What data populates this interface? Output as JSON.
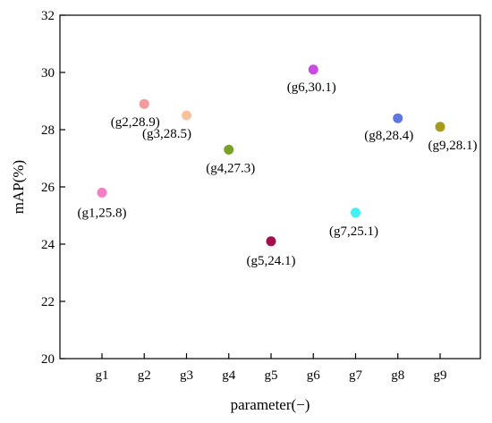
{
  "chart_data": {
    "type": "scatter",
    "title": "",
    "xlabel": "parameter(−)",
    "ylabel": "mAP(%)",
    "categories": [
      "g1",
      "g2",
      "g3",
      "g4",
      "g5",
      "g6",
      "g7",
      "g8",
      "g9"
    ],
    "ylim": [
      20,
      32
    ],
    "yticks": [
      20,
      22,
      24,
      26,
      28,
      30,
      32
    ],
    "grid": false,
    "points": [
      {
        "x": "g1",
        "y": 25.8,
        "label": "(g1,25.8)",
        "color": "#f47fc4"
      },
      {
        "x": "g2",
        "y": 28.9,
        "label": "(g2,28.9)",
        "color": "#f49a9a"
      },
      {
        "x": "g3",
        "y": 28.5,
        "label": "(g3,28.5)",
        "color": "#f7c39c"
      },
      {
        "x": "g4",
        "y": 27.3,
        "label": "(g4,27.3)",
        "color": "#7aa025"
      },
      {
        "x": "g5",
        "y": 24.1,
        "label": "(g5,24.1)",
        "color": "#a3104e"
      },
      {
        "x": "g6",
        "y": 30.1,
        "label": "(g6,30.1)",
        "color": "#c84be6"
      },
      {
        "x": "g7",
        "y": 25.1,
        "label": "(g7,25.1)",
        "color": "#41f2f2"
      },
      {
        "x": "g8",
        "y": 28.4,
        "label": "(g8,28.4)",
        "color": "#5f78e0"
      },
      {
        "x": "g9",
        "y": 28.1,
        "label": "(g9,28.1)",
        "color": "#a89a1c"
      }
    ]
  }
}
